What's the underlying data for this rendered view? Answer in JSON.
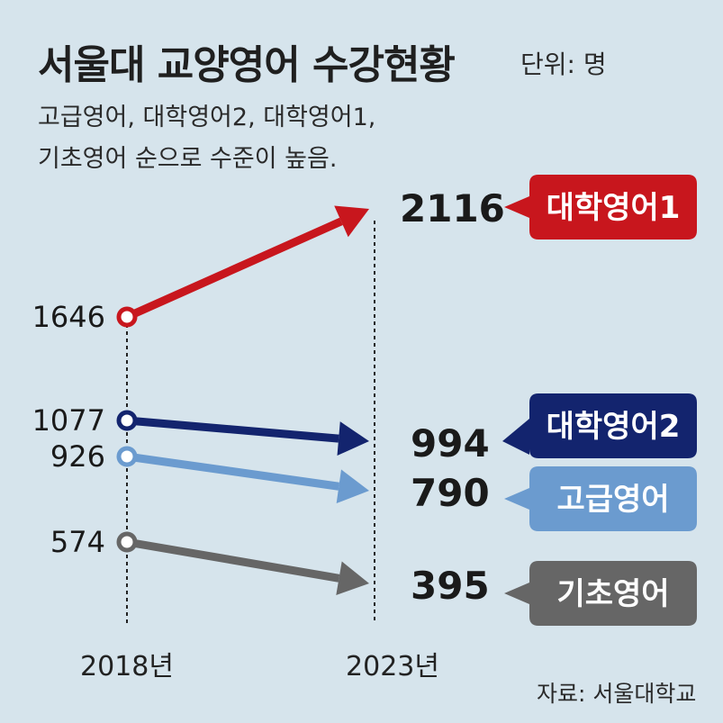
{
  "header": {
    "title": "서울대 교양영어 수강현황",
    "unit": "단위: 명",
    "subtitle_line1": "고급영어, 대학영어2, 대학영어1,",
    "subtitle_line2": "기초영어 순으로 수준이 높음.",
    "source": "자료: 서울대학교"
  },
  "chart_data": {
    "type": "line",
    "x": [
      "2018년",
      "2023년"
    ],
    "series": [
      {
        "name": "대학영어1",
        "values": [
          1646,
          2116
        ],
        "color": "#c8161d"
      },
      {
        "name": "대학영어2",
        "values": [
          1077,
          994
        ],
        "color": "#13246e"
      },
      {
        "name": "고급영어",
        "values": [
          926,
          790
        ],
        "color": "#6b9bcf"
      },
      {
        "name": "기초영어",
        "values": [
          574,
          395
        ],
        "color": "#666666"
      }
    ],
    "start_labels": [
      "1646",
      "1077",
      "926",
      "574"
    ],
    "end_labels": [
      "2116",
      "994",
      "790",
      "395"
    ],
    "grid": false
  }
}
